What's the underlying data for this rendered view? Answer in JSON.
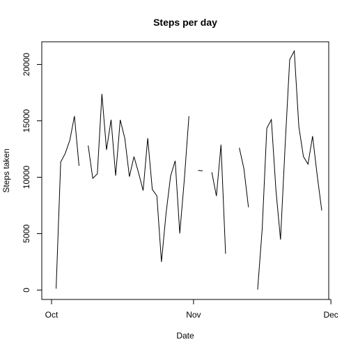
{
  "chart_data": {
    "type": "line",
    "title": "Steps per day",
    "xlabel": "Date",
    "ylabel": "Steps taken",
    "grid": false,
    "xlim": [
      "2012-10-01",
      "2012-12-01"
    ],
    "ylim": [
      0,
      21500
    ],
    "x_ticks": [
      {
        "date": "2012-10-01",
        "label": "Oct"
      },
      {
        "date": "2012-11-01",
        "label": "Nov"
      },
      {
        "date": "2012-12-01",
        "label": "Dec"
      }
    ],
    "y_ticks": [
      0,
      5000,
      10000,
      15000,
      20000
    ],
    "x": [
      "2012-10-01",
      "2012-10-02",
      "2012-10-03",
      "2012-10-04",
      "2012-10-05",
      "2012-10-06",
      "2012-10-07",
      "2012-10-08",
      "2012-10-09",
      "2012-10-10",
      "2012-10-11",
      "2012-10-12",
      "2012-10-13",
      "2012-10-14",
      "2012-10-15",
      "2012-10-16",
      "2012-10-17",
      "2012-10-18",
      "2012-10-19",
      "2012-10-20",
      "2012-10-21",
      "2012-10-22",
      "2012-10-23",
      "2012-10-24",
      "2012-10-25",
      "2012-10-26",
      "2012-10-27",
      "2012-10-28",
      "2012-10-29",
      "2012-10-30",
      "2012-10-31",
      "2012-11-01",
      "2012-11-02",
      "2012-11-03",
      "2012-11-04",
      "2012-11-05",
      "2012-11-06",
      "2012-11-07",
      "2012-11-08",
      "2012-11-09",
      "2012-11-10",
      "2012-11-11",
      "2012-11-12",
      "2012-11-13",
      "2012-11-14",
      "2012-11-15",
      "2012-11-16",
      "2012-11-17",
      "2012-11-18",
      "2012-11-19",
      "2012-11-20",
      "2012-11-21",
      "2012-11-22",
      "2012-11-23",
      "2012-11-24",
      "2012-11-25",
      "2012-11-26",
      "2012-11-27",
      "2012-11-28",
      "2012-11-29",
      "2012-11-30"
    ],
    "series": [
      {
        "values": [
          null,
          126,
          11352,
          12116,
          13294,
          15420,
          11015,
          null,
          12811,
          9900,
          10304,
          17382,
          12426,
          15098,
          10139,
          15084,
          13452,
          10056,
          11829,
          10395,
          8821,
          13460,
          8918,
          8355,
          2492,
          6778,
          10119,
          11458,
          5018,
          9819,
          15414,
          null,
          10600,
          10571,
          null,
          10439,
          8334,
          12883,
          3219,
          null,
          null,
          12608,
          10765,
          7336,
          null,
          41,
          5441,
          14339,
          15110,
          8841,
          4472,
          12787,
          20427,
          21194,
          14478,
          11834,
          11162,
          13646,
          10183,
          7047,
          null
        ],
        "color": "#000000"
      }
    ]
  }
}
